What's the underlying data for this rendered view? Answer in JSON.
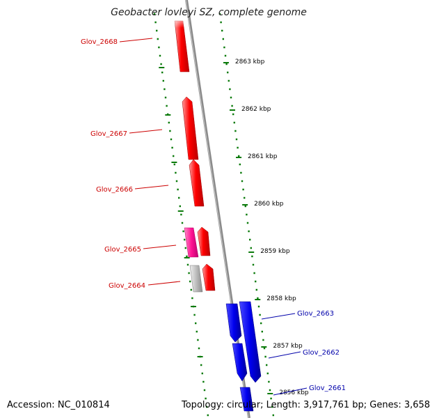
{
  "title": "Geobacter lovleyi SZ, complete genome",
  "footer": {
    "accession": "Accession: NC_010814",
    "summary": "Topology: circular; Length: 3,917,761 bp; Genes: 3,658"
  },
  "colors": {
    "forward_gene": "#ff0000",
    "reverse_gene": "#0000ee",
    "pink_gene": "#ff1493",
    "grey_gene": "#b4b4b4",
    "tick": "#0a7a0a",
    "backbone": "#808080",
    "forward_label": "#cc0000",
    "reverse_label": "#0000aa"
  },
  "kbp_labels": [
    "2863 kbp",
    "2862 kbp",
    "2861 kbp",
    "2860 kbp",
    "2859 kbp",
    "2858 kbp",
    "2857 kbp",
    "2856 kbp"
  ],
  "gene_labels": [
    {
      "name": "Glov_2668",
      "strand": "forward"
    },
    {
      "name": "Glov_2667",
      "strand": "forward"
    },
    {
      "name": "Glov_2666",
      "strand": "forward"
    },
    {
      "name": "Glov_2665",
      "strand": "forward"
    },
    {
      "name": "Glov_2664",
      "strand": "forward"
    },
    {
      "name": "Glov_2663",
      "strand": "reverse"
    },
    {
      "name": "Glov_2662",
      "strand": "reverse"
    },
    {
      "name": "Glov_2661",
      "strand": "reverse"
    }
  ]
}
